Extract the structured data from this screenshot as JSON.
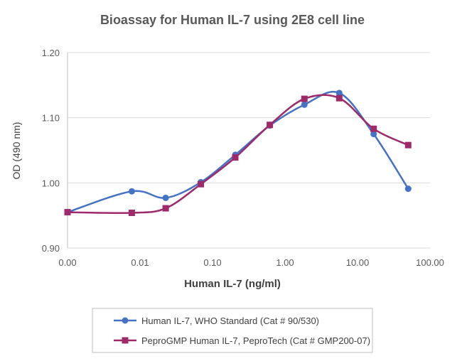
{
  "chart_data": {
    "type": "line",
    "title": "Bioassay for Human IL-7 using 2E8 cell line",
    "xlabel": "Human IL-7 (ng/ml)",
    "ylabel": "OD (490 nm)",
    "x_scale": "log",
    "x_ticks": [
      "0.00",
      "0.01",
      "0.10",
      "1.00",
      "10.00",
      "100.00"
    ],
    "y_ticks": [
      "0.90",
      "1.00",
      "1.10",
      "1.20"
    ],
    "ylim": [
      0.9,
      1.2
    ],
    "grid": "horizontal",
    "legend_position": "bottom",
    "series": [
      {
        "name": "Human IL-7, WHO Standard (Cat # 90/530)",
        "color": "#4472C4",
        "marker": "circle",
        "x": [
          0.001,
          0.0077,
          0.0226,
          0.069,
          0.206,
          0.617,
          1.85,
          5.6,
          16.7,
          50
        ],
        "values": [
          0.955,
          0.987,
          0.977,
          1.001,
          1.043,
          1.088,
          1.12,
          1.138,
          1.075,
          0.991
        ]
      },
      {
        "name": "PeproGMP Human IL-7, PeproTech (Cat # GMP200-07)",
        "color": "#9E2A6B",
        "marker": "square",
        "x": [
          0.001,
          0.0077,
          0.0226,
          0.069,
          0.206,
          0.617,
          1.85,
          5.6,
          16.7,
          50
        ],
        "values": [
          0.955,
          0.954,
          0.961,
          0.998,
          1.039,
          1.089,
          1.129,
          1.13,
          1.083,
          1.058
        ]
      }
    ]
  }
}
